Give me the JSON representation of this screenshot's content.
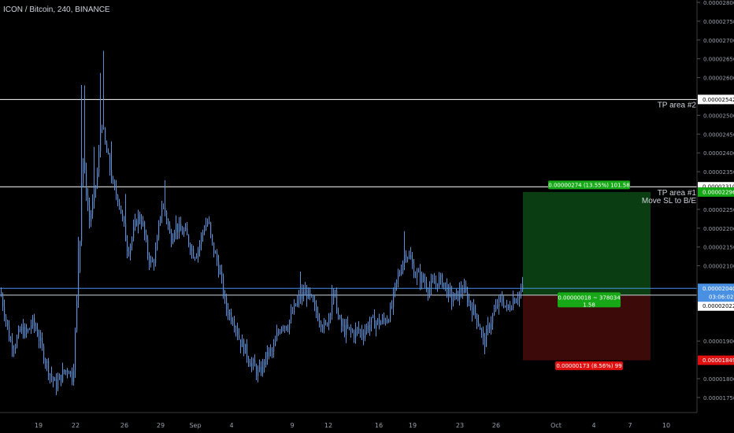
{
  "header": {
    "symbol_title": "ICON / Bitcoin, 240, BINANCE"
  },
  "colors": {
    "background": "#000000",
    "candle": "#5b8fd6",
    "hline": "#ffffff",
    "blue_line": "#4a90e2",
    "profit_zone": "#0b3d12",
    "loss_zone": "#3d0a0a",
    "profit_label": "#17a817",
    "loss_label": "#e01010",
    "text": "#d1d4dc",
    "axis_text": "#9aa0aa"
  },
  "chart_data": {
    "type": "candlestick",
    "title": "ICON / Bitcoin, 240, BINANCE",
    "ylim": [
      1.72e-05,
      2.8e-05
    ],
    "y_ticks": [
      "0.00002800",
      "0.00002750",
      "0.00002700",
      "0.00002650",
      "0.00002600",
      "0.00002500",
      "0.00002450",
      "0.00002400",
      "0.00002350",
      "0.00002250",
      "0.00002200",
      "0.00002150",
      "0.00002100",
      "0.00001900",
      "0.00001800",
      "0.00001750"
    ],
    "x_ticks": [
      "19",
      "22",
      "26",
      "29",
      "Sep",
      "4",
      "9",
      "12",
      "16",
      "19",
      "23",
      "26",
      "Oct",
      "4",
      "7",
      "10"
    ],
    "close_path": [
      [
        0,
        2.03e-05
      ],
      [
        6,
        1.97e-05
      ],
      [
        12,
        1.9e-05
      ],
      [
        18,
        1.89e-05
      ],
      [
        26,
        1.93e-05
      ],
      [
        34,
        1.92e-05
      ],
      [
        40,
        1.95e-05
      ],
      [
        46,
        1.93e-05
      ],
      [
        54,
        1.87e-05
      ],
      [
        62,
        1.82e-05
      ],
      [
        70,
        1.78e-05
      ],
      [
        78,
        1.81e-05
      ],
      [
        86,
        1.83e-05
      ],
      [
        92,
        1.8e-05
      ],
      [
        97,
        2e-05
      ],
      [
        101,
        2.18e-05
      ],
      [
        104,
        2.4e-05
      ],
      [
        108,
        2.32e-05
      ],
      [
        113,
        2.22e-05
      ],
      [
        118,
        2.27e-05
      ],
      [
        124,
        2.36e-05
      ],
      [
        128,
        2.5e-05
      ],
      [
        132,
        2.43e-05
      ],
      [
        138,
        2.37e-05
      ],
      [
        144,
        2.3e-05
      ],
      [
        150,
        2.28e-05
      ],
      [
        156,
        2.21e-05
      ],
      [
        162,
        2.14e-05
      ],
      [
        168,
        2.18e-05
      ],
      [
        174,
        2.23e-05
      ],
      [
        180,
        2.22e-05
      ],
      [
        186,
        2.14e-05
      ],
      [
        192,
        2.1e-05
      ],
      [
        198,
        2.14e-05
      ],
      [
        204,
        2.26e-05
      ],
      [
        210,
        2.24e-05
      ],
      [
        216,
        2.17e-05
      ],
      [
        222,
        2.21e-05
      ],
      [
        228,
        2.19e-05
      ],
      [
        234,
        2.19e-05
      ],
      [
        240,
        2.16e-05
      ],
      [
        246,
        2.13e-05
      ],
      [
        252,
        2.15e-05
      ],
      [
        258,
        2.2e-05
      ],
      [
        264,
        2.22e-05
      ],
      [
        268,
        2.16e-05
      ],
      [
        274,
        2.12e-05
      ],
      [
        280,
        2.07e-05
      ],
      [
        286,
        1.99e-05
      ],
      [
        292,
        1.97e-05
      ],
      [
        298,
        1.95e-05
      ],
      [
        304,
        1.9e-05
      ],
      [
        310,
        1.88e-05
      ],
      [
        316,
        1.85e-05
      ],
      [
        322,
        1.83e-05
      ],
      [
        328,
        1.81e-05
      ],
      [
        334,
        1.84e-05
      ],
      [
        340,
        1.87e-05
      ],
      [
        346,
        1.87e-05
      ],
      [
        352,
        1.92e-05
      ],
      [
        358,
        1.95e-05
      ],
      [
        364,
        1.94e-05
      ],
      [
        370,
        1.97e-05
      ],
      [
        376,
        2e-05
      ],
      [
        382,
        2.02e-05
      ],
      [
        388,
        2.03e-05
      ],
      [
        394,
        2.01e-05
      ],
      [
        400,
        1.98e-05
      ],
      [
        406,
        1.96e-05
      ],
      [
        412,
        1.93e-05
      ],
      [
        418,
        1.98e-05
      ],
      [
        424,
        2.03e-05
      ],
      [
        430,
        1.95e-05
      ],
      [
        436,
        1.93e-05
      ],
      [
        442,
        1.93e-05
      ],
      [
        448,
        1.92e-05
      ],
      [
        454,
        1.93e-05
      ],
      [
        460,
        1.92e-05
      ],
      [
        466,
        1.94e-05
      ],
      [
        472,
        1.95e-05
      ],
      [
        478,
        1.95e-05
      ],
      [
        484,
        1.95e-05
      ],
      [
        490,
        1.96e-05
      ],
      [
        496,
        1.98e-05
      ],
      [
        502,
        2.05e-05
      ],
      [
        508,
        2.09e-05
      ],
      [
        514,
        2.14e-05
      ],
      [
        520,
        2.12e-05
      ],
      [
        526,
        2.08e-05
      ],
      [
        532,
        2.07e-05
      ],
      [
        538,
        2.06e-05
      ],
      [
        544,
        2.04e-05
      ],
      [
        550,
        2.05e-05
      ],
      [
        556,
        2.06e-05
      ],
      [
        562,
        2.06e-05
      ],
      [
        568,
        2.03e-05
      ],
      [
        574,
        2.01e-05
      ],
      [
        580,
        2.02e-05
      ],
      [
        586,
        2.04e-05
      ],
      [
        592,
        2.02e-05
      ],
      [
        598,
        1.99e-05
      ],
      [
        604,
        1.97e-05
      ],
      [
        610,
        1.93e-05
      ],
      [
        614,
        1.89e-05
      ],
      [
        620,
        1.94e-05
      ],
      [
        626,
        1.97e-05
      ],
      [
        632,
        2e-05
      ],
      [
        638,
        2.01e-05
      ],
      [
        644,
        1.98e-05
      ],
      [
        650,
        2.01e-05
      ],
      [
        656,
        2.02e-05
      ],
      [
        664,
        2.04e-05
      ]
    ],
    "horizontal_lines": [
      {
        "price": 2.542e-05,
        "label": "0.00002542",
        "annotation": "TP area #2"
      },
      {
        "price": 2.31e-05,
        "label": "0.00002310",
        "annotation": "TP area #1"
      }
    ],
    "position": {
      "type": "long",
      "entry": 2.022e-05,
      "target": 2.296e-05,
      "stop": 1.849e-05,
      "target_label": "0.00002296",
      "stop_label": "0.00001849",
      "entry_label": "0.00002022",
      "entry_label_2": "0.00002022",
      "profit_text": "0.00000274 (13.55%) 101.58",
      "loss_text": "0.00000173 (8.56%) 99",
      "center_text_1": "0.00000018 ~ 378034",
      "center_text_2": "1.58",
      "annotation": "Move SL to B/E"
    },
    "current_price": {
      "price": 2.04e-05,
      "label": "0.00002040",
      "countdown": "03:06:02"
    }
  }
}
